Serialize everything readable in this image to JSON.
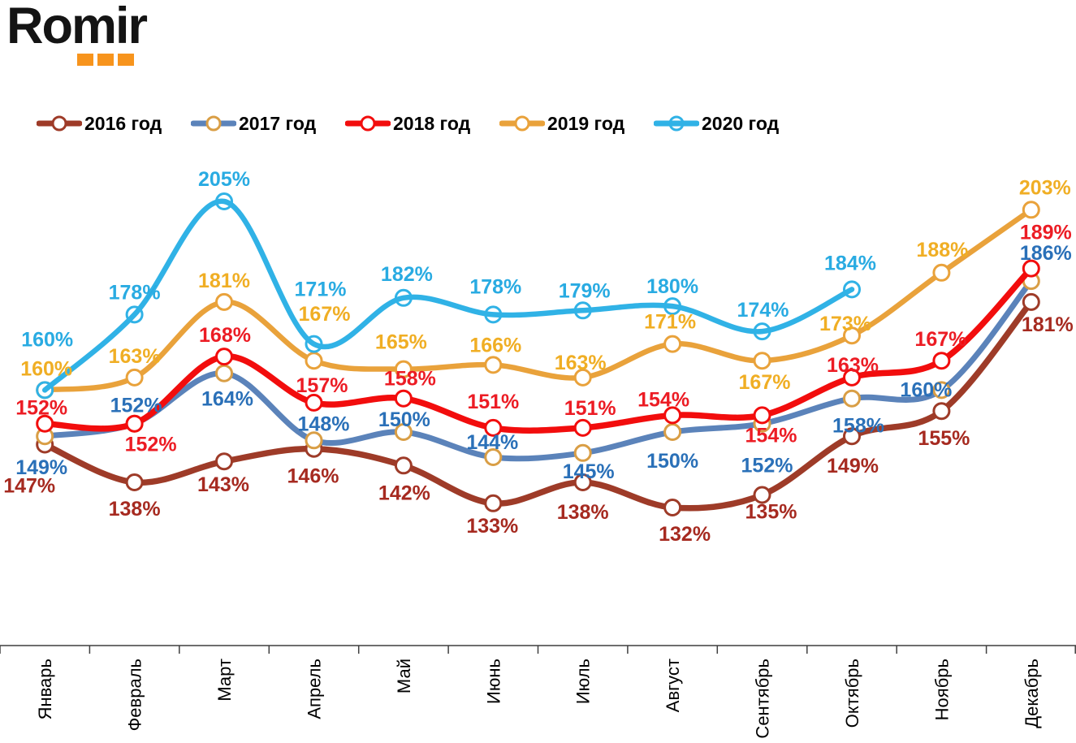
{
  "logo": {
    "text": "Romir",
    "dots_color": "#F7941D"
  },
  "chart_data": {
    "type": "line",
    "title": "",
    "value_suffix": "%",
    "categories": [
      "Январь",
      "Февраль",
      "Март",
      "Апрель",
      "Май",
      "Июнь",
      "Июль",
      "Август",
      "Сентябрь",
      "Октябрь",
      "Ноябрь",
      "Декабрь"
    ],
    "series": [
      {
        "name": "2016 год",
        "line_color": "#9E3B28",
        "label_color": "#A62A20",
        "marker_stroke": "#9E3B28",
        "marker_fill": "#FFFFFF",
        "values": [
          147,
          138,
          143,
          146,
          142,
          133,
          138,
          132,
          135,
          149,
          155,
          181
        ]
      },
      {
        "name": "2017 год",
        "line_color": "#5B83BA",
        "label_color": "#2A70B8",
        "marker_stroke": "#D99E45",
        "marker_fill": "#FFFFFF",
        "values": [
          149,
          152,
          164,
          148,
          150,
          144,
          145,
          150,
          152,
          158,
          160,
          186
        ]
      },
      {
        "name": "2018 год",
        "line_color": "#F20D0D",
        "label_color": "#EC1C24",
        "marker_stroke": "#F20D0D",
        "marker_fill": "#FFFFFF",
        "values": [
          152,
          152,
          168,
          157,
          158,
          151,
          151,
          154,
          154,
          163,
          167,
          189
        ]
      },
      {
        "name": "2019 год",
        "line_color": "#E9A23B",
        "label_color": "#F0AE24",
        "marker_stroke": "#E9A23B",
        "marker_fill": "#FFFFFF",
        "values": [
          160,
          163,
          181,
          167,
          165,
          166,
          163,
          171,
          167,
          173,
          188,
          203
        ]
      },
      {
        "name": "2020 год",
        "line_color": "#30B2E6",
        "label_color": "#29ABE2",
        "marker_stroke": "#30B2E6",
        "marker_fill": "none",
        "values": [
          160,
          178,
          205,
          171,
          182,
          178,
          179,
          180,
          174,
          184,
          null,
          null
        ]
      }
    ],
    "ylim": [
      125,
      215
    ],
    "grid": false,
    "legend_position": "top",
    "axis_color": "#3F3F3F"
  }
}
